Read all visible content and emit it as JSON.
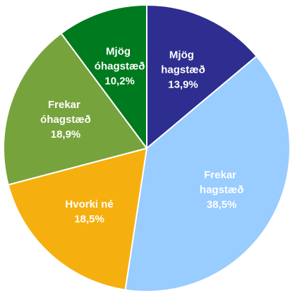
{
  "chart_data": {
    "type": "pie",
    "categories": [
      "Mjög hagstæð",
      "Frekar hagstæð",
      "Hvorki né",
      "Frekar óhagstæð",
      "Mjög óhagstæð"
    ],
    "values": [
      13.9,
      38.5,
      18.5,
      18.9,
      10.2
    ],
    "value_labels": [
      "13,9%",
      "38,5%",
      "18,5%",
      "18,9%",
      "10,2%"
    ],
    "colors": [
      "#2e2e90",
      "#99ccff",
      "#f5b00f",
      "#77a33c",
      "#007a1e"
    ]
  }
}
